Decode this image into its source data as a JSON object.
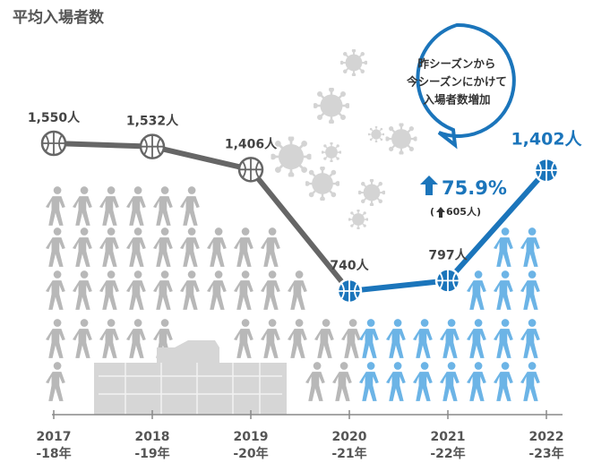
{
  "chart_data": {
    "type": "line",
    "title": "平均入場者数",
    "categories": [
      [
        "2017",
        "-18年"
      ],
      [
        "2018",
        "-19年"
      ],
      [
        "2019",
        "-20年"
      ],
      [
        "2020",
        "-21年"
      ],
      [
        "2021",
        "-22年"
      ],
      [
        "2022",
        "-23年"
      ]
    ],
    "values": [
      1550,
      1532,
      1406,
      740,
      797,
      1402
    ],
    "value_labels": [
      "1,550人",
      "1,532人",
      "1,406人",
      "740人",
      "797人",
      "1,402人"
    ],
    "point_colors": [
      "#666666",
      "#666666",
      "#666666",
      "#1b75bb",
      "#1b75bb",
      "#1b75bb"
    ],
    "annotations": [
      "昨シーズンから",
      "今シーズンにかけて",
      "入場者数増加",
      "75.9%",
      "605人)"
    ]
  }
}
